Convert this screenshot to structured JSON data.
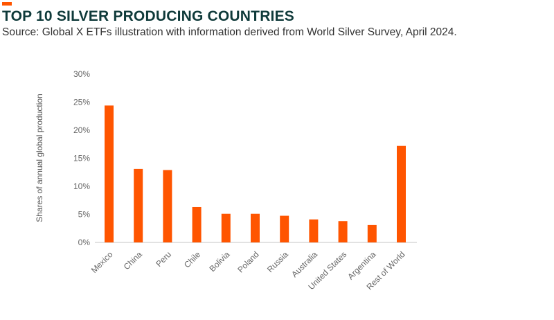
{
  "header": {
    "title": "TOP 10 SILVER PRODUCING COUNTRIES",
    "subtitle": "Source: Global X ETFs illustration with information derived from World Silver Survey, April 2024."
  },
  "chart_data": {
    "type": "bar",
    "title": "TOP 10 SILVER PRODUCING COUNTRIES",
    "xlabel": "",
    "ylabel": "Shares of annual global production",
    "categories": [
      "Mexico",
      "China",
      "Peru",
      "Chile",
      "Bolivia",
      "Poland",
      "Russia",
      "Australia",
      "United States",
      "Argentina",
      "Rest of World"
    ],
    "values": [
      24.4,
      13.1,
      12.9,
      6.3,
      5.1,
      5.1,
      4.75,
      4.1,
      3.8,
      3.1,
      17.2
    ],
    "ylim": [
      0,
      30
    ],
    "yticks": [
      "0%",
      "5%",
      "10%",
      "15%",
      "20%",
      "25%",
      "30%"
    ],
    "grid": false,
    "bar_color": "#ff5500",
    "accent_color": "#ff5500"
  }
}
